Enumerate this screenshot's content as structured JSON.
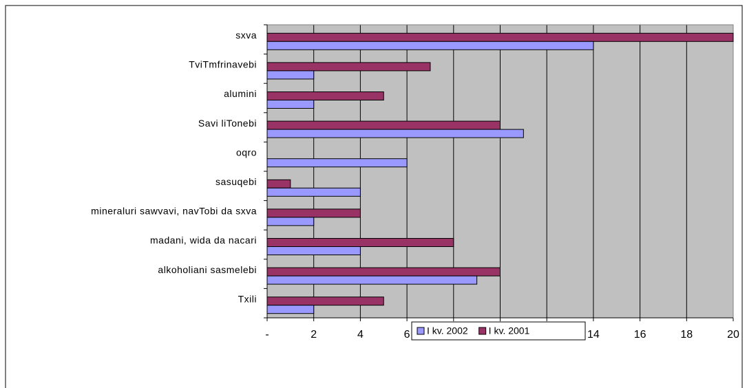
{
  "chart_data": {
    "type": "hbar",
    "categories": [
      "sxva",
      "TviTmfrinavebi",
      "alumini",
      "Savi liTonebi",
      "oqro",
      "sasuqebi",
      "mineraluri sawvavi, navTobi da sxva",
      "madani, wida da nacari",
      "alkoholiani sasmelebi",
      "Txili"
    ],
    "series": [
      {
        "name": "I kv. 2002",
        "color": "#9999ff",
        "values": [
          14,
          2,
          2,
          11,
          6,
          4,
          2,
          4,
          9,
          2
        ]
      },
      {
        "name": "I kv. 2001",
        "color": "#993366",
        "values": [
          20,
          7,
          5,
          10,
          null,
          1,
          4,
          8,
          10,
          5
        ]
      }
    ],
    "xlim": [
      0,
      20
    ],
    "xticks": [
      {
        "value": 0,
        "label": "-"
      },
      2,
      4,
      6,
      8,
      10,
      12,
      14,
      16,
      18,
      20
    ],
    "grid": true,
    "legend": "bottom"
  }
}
